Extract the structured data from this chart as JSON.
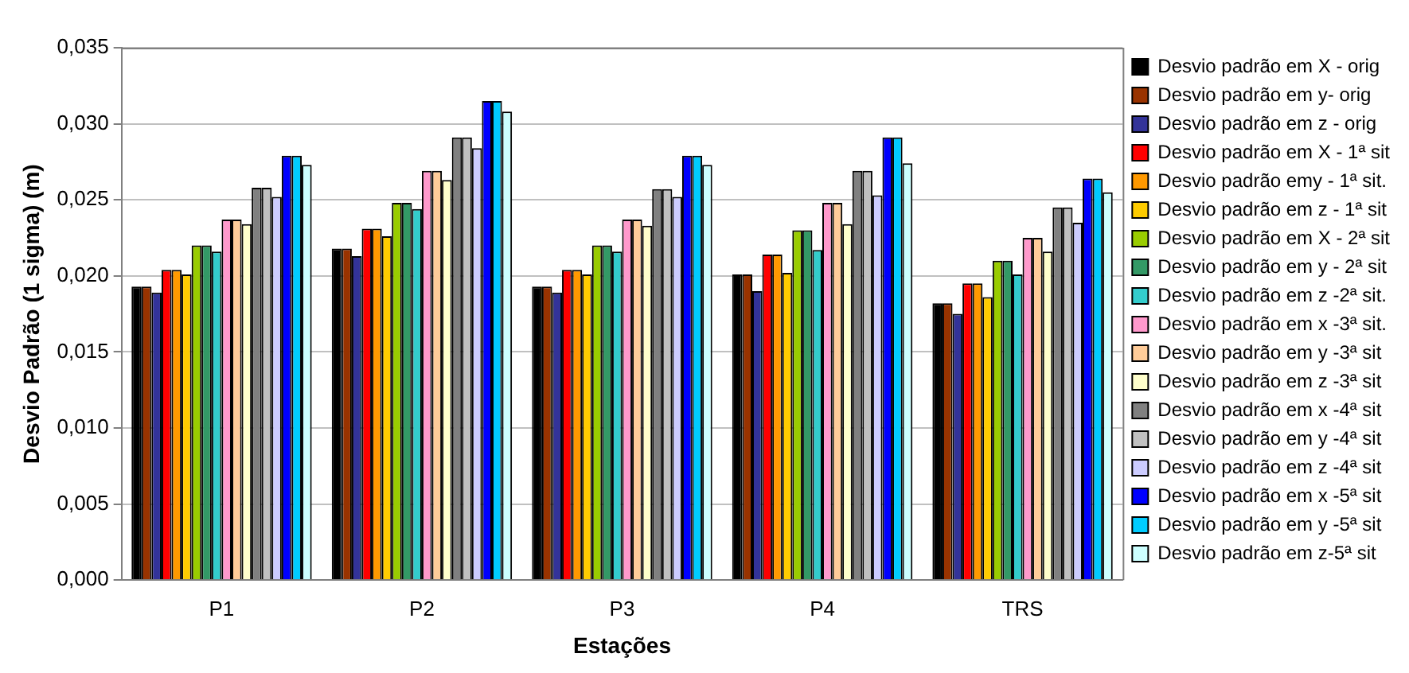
{
  "chart_data": {
    "type": "bar",
    "xlabel": "Estações",
    "ylabel": "Desvio Padrão (1 sigma) (m)",
    "categories": [
      "P1",
      "P2",
      "P3",
      "P4",
      "TRS"
    ],
    "ylim": [
      0,
      0.035
    ],
    "yticks": [
      {
        "value": 0,
        "label": "0,000"
      },
      {
        "value": 0.005,
        "label": "0,005"
      },
      {
        "value": 0.01,
        "label": "0,010"
      },
      {
        "value": 0.015,
        "label": "0,015"
      },
      {
        "value": 0.02,
        "label": "0,020"
      },
      {
        "value": 0.025,
        "label": "0,025"
      },
      {
        "value": 0.03,
        "label": "0,030"
      },
      {
        "value": 0.035,
        "label": "0,035"
      }
    ],
    "grid": "y",
    "legend": "right",
    "series": [
      {
        "name": "Desvio padrão em X - orig",
        "color": "#000000",
        "values": [
          0.0193,
          0.0218,
          0.0193,
          0.0201,
          0.0182
        ]
      },
      {
        "name": "Desvio padrão em y- orig",
        "color": "#993300",
        "values": [
          0.0193,
          0.0218,
          0.0193,
          0.0201,
          0.0182
        ]
      },
      {
        "name": "Desvio padrão em z - orig",
        "color": "#333399",
        "values": [
          0.0189,
          0.0213,
          0.0189,
          0.019,
          0.0175
        ]
      },
      {
        "name": "Desvio padrão em X - 1ª sit",
        "color": "#ff0000",
        "values": [
          0.0204,
          0.0231,
          0.0204,
          0.0214,
          0.0195
        ]
      },
      {
        "name": "Desvio padrão emy - 1ª sit.",
        "color": "#ff9900",
        "values": [
          0.0204,
          0.0231,
          0.0204,
          0.0214,
          0.0195
        ]
      },
      {
        "name": "Desvio padrão em z - 1ª sit",
        "color": "#ffcc00",
        "values": [
          0.0201,
          0.0226,
          0.0201,
          0.0202,
          0.0186
        ]
      },
      {
        "name": "Desvio padrão em X - 2ª sit",
        "color": "#99cc00",
        "values": [
          0.022,
          0.0248,
          0.022,
          0.023,
          0.021
        ]
      },
      {
        "name": "Desvio padrão em y - 2ª sit",
        "color": "#339966",
        "values": [
          0.022,
          0.0248,
          0.022,
          0.023,
          0.021
        ]
      },
      {
        "name": "Desvio padrão em z -2ª sit.",
        "color": "#33cccc",
        "values": [
          0.0216,
          0.0244,
          0.0216,
          0.0217,
          0.0201
        ]
      },
      {
        "name": "Desvio padrão em x -3ª sit.",
        "color": "#ff99cc",
        "values": [
          0.0237,
          0.0269,
          0.0237,
          0.0248,
          0.0225
        ]
      },
      {
        "name": "Desvio padrão em y -3ª sit",
        "color": "#ffcc99",
        "values": [
          0.0237,
          0.0269,
          0.0237,
          0.0248,
          0.0225
        ]
      },
      {
        "name": "Desvio padrão em z -3ª sit",
        "color": "#ffffcc",
        "values": [
          0.0234,
          0.0263,
          0.0233,
          0.0234,
          0.0216
        ]
      },
      {
        "name": "Desvio padrão em x -4ª sit",
        "color": "#808080",
        "values": [
          0.0258,
          0.0291,
          0.0257,
          0.0269,
          0.0245
        ]
      },
      {
        "name": "Desvio padrão em y -4ª sit",
        "color": "#c0c0c0",
        "values": [
          0.0258,
          0.0291,
          0.0257,
          0.0269,
          0.0245
        ]
      },
      {
        "name": "Desvio padrão em z -4ª sit",
        "color": "#ccccff",
        "values": [
          0.0252,
          0.0284,
          0.0252,
          0.0253,
          0.0235
        ]
      },
      {
        "name": "Desvio padrão em x -5ª sit",
        "color": "#0000ff",
        "values": [
          0.0279,
          0.0315,
          0.0279,
          0.0291,
          0.0264
        ]
      },
      {
        "name": "Desvio padrão em y -5ª sit",
        "color": "#00ccff",
        "values": [
          0.0279,
          0.0315,
          0.0279,
          0.0291,
          0.0264
        ]
      },
      {
        "name": "Desvio padrão em z-5ª sit",
        "color": "#ccffff",
        "values": [
          0.0273,
          0.0308,
          0.0273,
          0.0274,
          0.0255
        ]
      }
    ]
  }
}
